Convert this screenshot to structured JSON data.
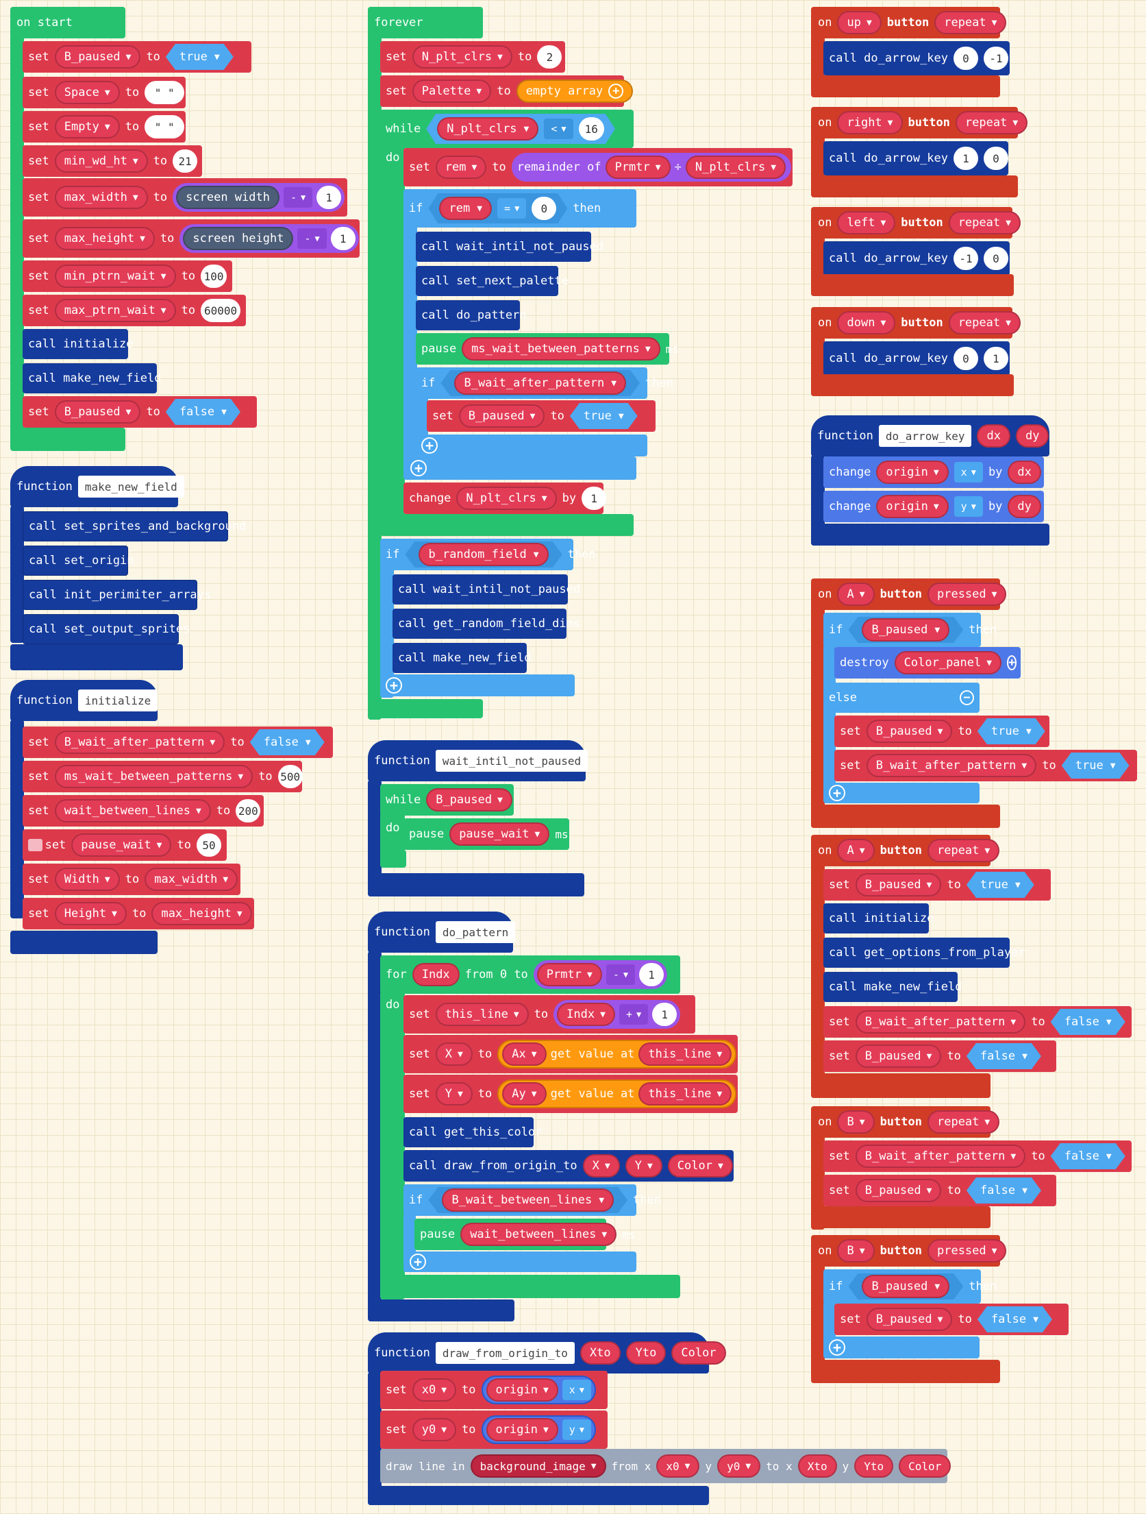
{
  "on_start": {
    "header": "on start",
    "set1": {
      "kw": "set",
      "var": "B_paused",
      "to": "to",
      "val": "true"
    },
    "set2": {
      "kw": "set",
      "var": "Space",
      "to": "to",
      "val": "\" \""
    },
    "set3": {
      "kw": "set",
      "var": "Empty",
      "to": "to",
      "val": "\" \""
    },
    "set4": {
      "kw": "set",
      "var": "min_wd_ht",
      "to": "to",
      "val": "21"
    },
    "set5": {
      "kw": "set",
      "var": "max_width",
      "to": "to",
      "a": "screen width",
      "op": "-",
      "b": "1"
    },
    "set6": {
      "kw": "set",
      "var": "max_height",
      "to": "to",
      "a": "screen height",
      "op": "-",
      "b": "1"
    },
    "set7": {
      "kw": "set",
      "var": "min_ptrn_wait",
      "to": "to",
      "val": "100"
    },
    "set8": {
      "kw": "set",
      "var": "max_ptrn_wait",
      "to": "to",
      "val": "60000"
    },
    "call1": "call initialize",
    "call2": "call make_new_field",
    "set9": {
      "kw": "set",
      "var": "B_paused",
      "to": "to",
      "val": "false"
    }
  },
  "fn_make_new_field": {
    "kw": "function",
    "name": "make_new_field",
    "calls": [
      "call set_sprites_and_background",
      "call set_origin",
      "call init_perimiter_arrays",
      "call set_output_sprites"
    ]
  },
  "fn_initialize": {
    "kw": "function",
    "name": "initialize",
    "s1": {
      "kw": "set",
      "var": "B_wait_after_pattern",
      "to": "to",
      "val": "false"
    },
    "s2": {
      "kw": "set",
      "var": "ms_wait_between_patterns",
      "to": "to",
      "val": "500"
    },
    "s3": {
      "kw": "set",
      "var": "wait_between_lines",
      "to": "to",
      "val": "200"
    },
    "s4": {
      "kw": "set",
      "var": "pause_wait",
      "to": "to",
      "val": "50"
    },
    "s5": {
      "kw": "set",
      "var": "Width",
      "to": "to",
      "val": "max_width"
    },
    "s6": {
      "kw": "set",
      "var": "Height",
      "to": "to",
      "val": "max_height"
    }
  },
  "forever": {
    "header": "forever",
    "s1": {
      "kw": "set",
      "var": "N_plt_clrs",
      "to": "to",
      "val": "2"
    },
    "s2": {
      "kw": "set",
      "var": "Palette",
      "to": "to",
      "val": "empty array"
    },
    "while": {
      "kw": "while",
      "var": "N_plt_clrs",
      "op": "<",
      "val": "16",
      "do": "do"
    },
    "s3": {
      "kw": "set",
      "var": "rem",
      "to": "to",
      "fn": "remainder of",
      "a": "Prmtr",
      "div": "÷",
      "b": "N_plt_clrs"
    },
    "if1": {
      "kw": "if",
      "var": "rem",
      "op": "=",
      "val": "0",
      "then": "then"
    },
    "c1": "call wait_intil_not_paused",
    "c2": "call set_next_palette",
    "c3": "call do_pattern",
    "pause": {
      "kw": "pause",
      "var": "ms_wait_between_patterns",
      "unit": "ms"
    },
    "if2": {
      "kw": "if",
      "var": "B_wait_after_pattern",
      "then": "then"
    },
    "s4": {
      "kw": "set",
      "var": "B_paused",
      "to": "to",
      "val": "true"
    },
    "change": {
      "kw": "change",
      "var": "N_plt_clrs",
      "by": "by",
      "val": "1"
    },
    "if3": {
      "kw": "if",
      "var": "b_random_field",
      "then": "then"
    },
    "c4": "call wait_intil_not_paused",
    "c5": "call get_random_field_dims",
    "c6": "call make_new_field"
  },
  "fn_wait": {
    "kw": "function",
    "name": "wait_intil_not_paused",
    "while": {
      "kw": "while",
      "var": "B_paused",
      "do": "do"
    },
    "pause": {
      "kw": "pause",
      "var": "pause_wait",
      "unit": "ms"
    }
  },
  "fn_do_pattern": {
    "kw": "function",
    "name": "do_pattern",
    "for": {
      "kw": "for",
      "var": "Indx",
      "from": "from 0 to",
      "a": "Prmtr",
      "op": "-",
      "b": "1",
      "do": "do"
    },
    "s1": {
      "kw": "set",
      "var": "this_line",
      "to": "to",
      "a": "Indx",
      "op": "+",
      "b": "1"
    },
    "s2": {
      "kw": "set",
      "var": "X",
      "to": "to",
      "arr": "Ax",
      "gv": "get value at",
      "idx": "this_line"
    },
    "s3": {
      "kw": "set",
      "var": "Y",
      "to": "to",
      "arr": "Ay",
      "gv": "get value at",
      "idx": "this_line"
    },
    "c1": "call get_this_color",
    "c2": {
      "call": "call draw_from_origin_to",
      "a": "X",
      "b": "Y",
      "c": "Color"
    },
    "if": {
      "kw": "if",
      "var": "B_wait_between_lines",
      "then": "then"
    },
    "pause": {
      "kw": "pause",
      "var": "wait_between_lines",
      "unit": "ms"
    }
  },
  "fn_draw": {
    "kw": "function",
    "name": "draw_from_origin_to",
    "p1": "Xto",
    "p2": "Yto",
    "p3": "Color",
    "s1": {
      "kw": "set",
      "var": "x0",
      "to": "to",
      "obj": "origin",
      "prop": "x"
    },
    "s2": {
      "kw": "set",
      "var": "y0",
      "to": "to",
      "obj": "origin",
      "prop": "y"
    },
    "line": {
      "kw": "draw line in",
      "img": "background_image",
      "fx": "from x",
      "x": "x0",
      "y": "y",
      "yv": "y0",
      "tx": "to x",
      "xto": "Xto",
      "ty": "y",
      "yto": "Yto",
      "c": "Color"
    }
  },
  "ev_up": {
    "on": "on",
    "key": "up",
    "btn": "button",
    "mode": "repeat",
    "call": "call do_arrow_key",
    "a": "0",
    "b": "-1"
  },
  "ev_right": {
    "on": "on",
    "key": "right",
    "btn": "button",
    "mode": "repeat",
    "call": "call do_arrow_key",
    "a": "1",
    "b": "0"
  },
  "ev_left": {
    "on": "on",
    "key": "left",
    "btn": "button",
    "mode": "repeat",
    "call": "call do_arrow_key",
    "a": "-1",
    "b": "0"
  },
  "ev_down": {
    "on": "on",
    "key": "down",
    "btn": "button",
    "mode": "repeat",
    "call": "call do_arrow_key",
    "a": "0",
    "b": "1"
  },
  "fn_arrow": {
    "kw": "function",
    "name": "do_arrow_key",
    "p1": "dx",
    "p2": "dy",
    "c1": {
      "kw": "change",
      "obj": "origin",
      "prop": "x",
      "by": "by",
      "val": "dx"
    },
    "c2": {
      "kw": "change",
      "obj": "origin",
      "prop": "y",
      "by": "by",
      "val": "dy"
    }
  },
  "ev_a_pressed": {
    "on": "on",
    "key": "A",
    "btn": "button",
    "mode": "pressed",
    "if": {
      "kw": "if",
      "var": "B_paused",
      "then": "then"
    },
    "destroy": {
      "kw": "destroy",
      "var": "Color_panel"
    },
    "else": "else",
    "s1": {
      "kw": "set",
      "var": "B_paused",
      "to": "to",
      "val": "true"
    },
    "s2": {
      "kw": "set",
      "var": "B_wait_after_pattern",
      "to": "to",
      "val": "true"
    }
  },
  "ev_a_repeat": {
    "on": "on",
    "key": "A",
    "btn": "button",
    "mode": "repeat",
    "s1": {
      "kw": "set",
      "var": "B_paused",
      "to": "to",
      "val": "true"
    },
    "c1": "call initialize",
    "c2": "call get_options_from_player",
    "c3": "call make_new_field",
    "s2": {
      "kw": "set",
      "var": "B_wait_after_pattern",
      "to": "to",
      "val": "false"
    },
    "s3": {
      "kw": "set",
      "var": "B_paused",
      "to": "to",
      "val": "false"
    }
  },
  "ev_b_repeat": {
    "on": "on",
    "key": "B",
    "btn": "button",
    "mode": "repeat",
    "s1": {
      "kw": "set",
      "var": "B_wait_after_pattern",
      "to": "to",
      "val": "false"
    },
    "s2": {
      "kw": "set",
      "var": "B_paused",
      "to": "to",
      "val": "false"
    }
  },
  "ev_b_pressed": {
    "on": "on",
    "key": "B",
    "btn": "button",
    "mode": "pressed",
    "if": {
      "kw": "if",
      "var": "B_paused",
      "then": "then"
    },
    "s1": {
      "kw": "set",
      "var": "B_paused",
      "to": "to",
      "val": "false"
    }
  },
  "colors": {
    "variables": "#dc3a4b",
    "functions": "#153b9c",
    "loops": "#26c270",
    "logic": "#4aa7f0",
    "controller": "#d13c26",
    "math": "#9b55e8",
    "images": "#9aa6b9",
    "arrays": "#ff9a10"
  },
  "icons": [
    "add-icon",
    "remove-icon",
    "dropdown-icon",
    "comment-icon"
  ]
}
